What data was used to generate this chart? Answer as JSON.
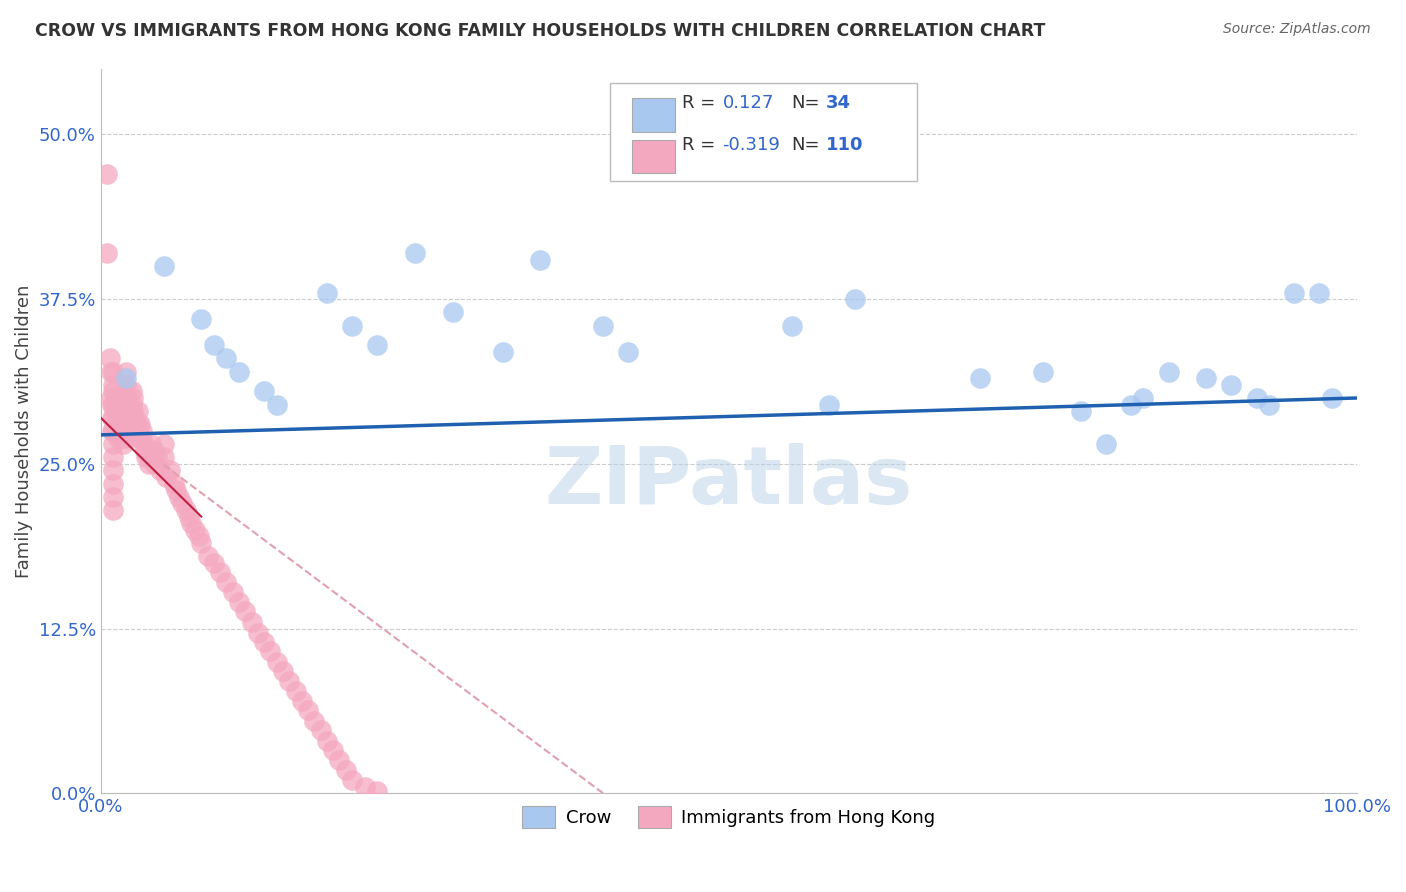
{
  "title": "CROW VS IMMIGRANTS FROM HONG KONG FAMILY HOUSEHOLDS WITH CHILDREN CORRELATION CHART",
  "source": "Source: ZipAtlas.com",
  "ylabel": "Family Households with Children",
  "r1": 0.127,
  "n1": 34,
  "r2": -0.319,
  "n2": 110,
  "legend_label1": "Crow",
  "legend_label2": "Immigrants from Hong Kong",
  "xlim": [
    0.0,
    1.0
  ],
  "ylim": [
    0.0,
    0.55
  ],
  "yticks": [
    0.0,
    0.125,
    0.25,
    0.375,
    0.5
  ],
  "xticks": [
    0.0,
    0.25,
    0.5,
    0.75,
    1.0
  ],
  "color_blue": "#a8c8f0",
  "color_pink": "#f4a8c0",
  "line_blue": "#2060b0",
  "line_pink_solid": "#c02040",
  "line_pink_dashed": "#e0a0b0",
  "watermark": "ZIPatlas",
  "blue_scatter_x": [
    0.02,
    0.05,
    0.08,
    0.09,
    0.1,
    0.11,
    0.13,
    0.14,
    0.18,
    0.2,
    0.22,
    0.25,
    0.28,
    0.32,
    0.35,
    0.4,
    0.42,
    0.55,
    0.58,
    0.6,
    0.7,
    0.75,
    0.78,
    0.8,
    0.82,
    0.83,
    0.85,
    0.88,
    0.9,
    0.92,
    0.93,
    0.95,
    0.97,
    0.98
  ],
  "blue_scatter_y": [
    0.315,
    0.4,
    0.36,
    0.34,
    0.33,
    0.32,
    0.305,
    0.295,
    0.38,
    0.355,
    0.34,
    0.41,
    0.365,
    0.335,
    0.405,
    0.355,
    0.335,
    0.355,
    0.295,
    0.375,
    0.315,
    0.32,
    0.29,
    0.265,
    0.295,
    0.3,
    0.32,
    0.315,
    0.31,
    0.3,
    0.295,
    0.38,
    0.38,
    0.3
  ],
  "pink_scatter_x": [
    0.005,
    0.005,
    0.007,
    0.008,
    0.008,
    0.009,
    0.009,
    0.009,
    0.01,
    0.01,
    0.01,
    0.01,
    0.01,
    0.01,
    0.01,
    0.01,
    0.01,
    0.01,
    0.01,
    0.01,
    0.012,
    0.012,
    0.013,
    0.013,
    0.014,
    0.014,
    0.015,
    0.015,
    0.015,
    0.016,
    0.016,
    0.017,
    0.017,
    0.018,
    0.018,
    0.019,
    0.02,
    0.02,
    0.02,
    0.02,
    0.021,
    0.021,
    0.022,
    0.022,
    0.023,
    0.023,
    0.024,
    0.025,
    0.025,
    0.025,
    0.026,
    0.026,
    0.027,
    0.028,
    0.03,
    0.03,
    0.03,
    0.031,
    0.032,
    0.033,
    0.034,
    0.035,
    0.036,
    0.038,
    0.04,
    0.04,
    0.042,
    0.043,
    0.045,
    0.047,
    0.05,
    0.05,
    0.052,
    0.055,
    0.058,
    0.06,
    0.062,
    0.065,
    0.068,
    0.07,
    0.072,
    0.075,
    0.078,
    0.08,
    0.085,
    0.09,
    0.095,
    0.1,
    0.105,
    0.11,
    0.115,
    0.12,
    0.125,
    0.13,
    0.135,
    0.14,
    0.145,
    0.15,
    0.155,
    0.16,
    0.165,
    0.17,
    0.175,
    0.18,
    0.185,
    0.19,
    0.195,
    0.2,
    0.21,
    0.22
  ],
  "pink_scatter_y": [
    0.47,
    0.41,
    0.33,
    0.32,
    0.3,
    0.295,
    0.285,
    0.275,
    0.32,
    0.31,
    0.305,
    0.295,
    0.285,
    0.275,
    0.265,
    0.255,
    0.245,
    0.235,
    0.225,
    0.215,
    0.3,
    0.29,
    0.285,
    0.275,
    0.28,
    0.27,
    0.295,
    0.285,
    0.275,
    0.285,
    0.275,
    0.28,
    0.27,
    0.275,
    0.265,
    0.27,
    0.32,
    0.31,
    0.3,
    0.29,
    0.3,
    0.29,
    0.295,
    0.285,
    0.29,
    0.28,
    0.285,
    0.305,
    0.295,
    0.285,
    0.3,
    0.29,
    0.285,
    0.275,
    0.29,
    0.28,
    0.27,
    0.28,
    0.27,
    0.275,
    0.265,
    0.26,
    0.255,
    0.25,
    0.265,
    0.255,
    0.26,
    0.25,
    0.255,
    0.245,
    0.265,
    0.255,
    0.24,
    0.245,
    0.235,
    0.23,
    0.225,
    0.22,
    0.215,
    0.21,
    0.205,
    0.2,
    0.195,
    0.19,
    0.18,
    0.175,
    0.168,
    0.16,
    0.153,
    0.145,
    0.138,
    0.13,
    0.122,
    0.115,
    0.108,
    0.1,
    0.093,
    0.085,
    0.078,
    0.07,
    0.063,
    0.055,
    0.048,
    0.04,
    0.033,
    0.025,
    0.018,
    0.01,
    0.005,
    0.002
  ],
  "blue_line_x0": 0.0,
  "blue_line_x1": 1.0,
  "blue_line_y0": 0.272,
  "blue_line_y1": 0.3,
  "pink_line_x0": 0.0,
  "pink_line_x1": 0.4,
  "pink_line_y0": 0.285,
  "pink_line_y1": 0.0
}
